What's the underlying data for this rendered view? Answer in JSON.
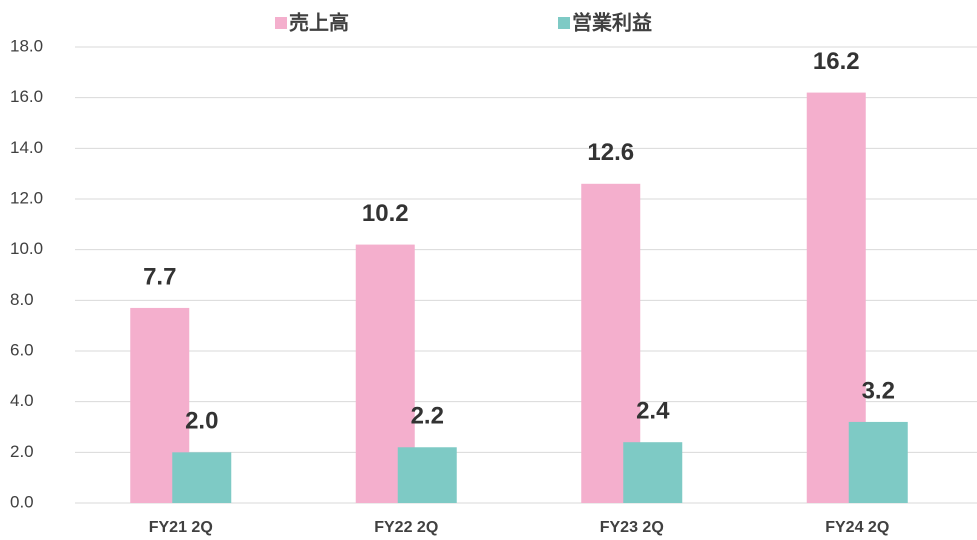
{
  "chart_data": {
    "type": "bar",
    "categories": [
      "FY21 2Q",
      "FY22 2Q",
      "FY23 2Q",
      "FY24 2Q"
    ],
    "series": [
      {
        "name": "売上高",
        "color": "#f4afcd",
        "values": [
          7.7,
          10.2,
          12.6,
          16.2
        ]
      },
      {
        "name": "営業利益",
        "color": "#7ecac5",
        "values": [
          2.0,
          2.2,
          2.4,
          3.2
        ],
        "value_labels": [
          "2.0",
          "2.2",
          "2.4",
          "3.2"
        ]
      }
    ],
    "ylim": [
      0,
      18
    ],
    "yticks": [
      {
        "value": 0,
        "label": "0.0"
      },
      {
        "value": 2,
        "label": "2.0"
      },
      {
        "value": 4,
        "label": "4.0"
      },
      {
        "value": 6,
        "label": "6.0"
      },
      {
        "value": 8,
        "label": "8.0"
      },
      {
        "value": 10,
        "label": "10.0"
      },
      {
        "value": 12,
        "label": "12.0"
      },
      {
        "value": 14,
        "label": "14.0"
      },
      {
        "value": 16,
        "label": "16.0"
      },
      {
        "value": 18,
        "label": "18.0"
      }
    ],
    "grid": true,
    "legend": "top"
  }
}
